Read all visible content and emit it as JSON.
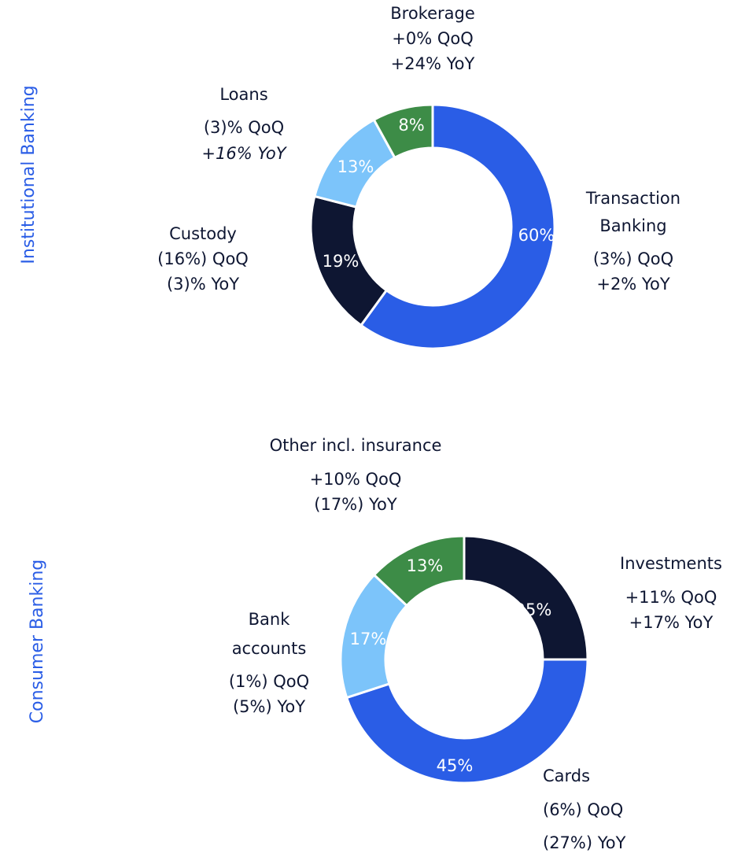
{
  "chart_data": [
    {
      "type": "donut",
      "title": "Institutional Banking",
      "categories": [
        [
          "Transaction",
          "Banking"
        ],
        [
          "Custody"
        ],
        [
          "Loans"
        ],
        [
          "Brokerage"
        ]
      ],
      "values": [
        60,
        19,
        13,
        8
      ],
      "value_labels": [
        "60%",
        "19%",
        "13%",
        "8%"
      ],
      "colors": [
        "#2a5de6",
        "#0e1632",
        "#7cc4fa",
        "#3d8c47"
      ],
      "qoq": [
        "(3%) QoQ",
        "(16%) QoQ",
        "(3)% QoQ",
        "+0% QoQ"
      ],
      "yoy": [
        "+2% YoY",
        "(3)% YoY",
        "+16% YoY",
        "+24% YoY"
      ]
    },
    {
      "type": "donut",
      "title": "Consumer Banking",
      "categories": [
        [
          "Investments"
        ],
        [
          "Cards"
        ],
        [
          "Bank",
          "accounts"
        ],
        [
          "Other incl. insurance"
        ]
      ],
      "values": [
        25,
        45,
        17,
        13
      ],
      "value_labels": [
        "25%",
        "45%",
        "17%",
        "13%"
      ],
      "colors": [
        "#0e1632",
        "#2a5de6",
        "#7cc4fa",
        "#3d8c47"
      ],
      "qoq": [
        "+11% QoQ",
        "(6%) QoQ",
        "(1%) QoQ",
        "+10% QoQ"
      ],
      "yoy": [
        "+17% YoY",
        "(27%) YoY",
        "(5%) YoY",
        "(17%) YoY"
      ]
    }
  ]
}
